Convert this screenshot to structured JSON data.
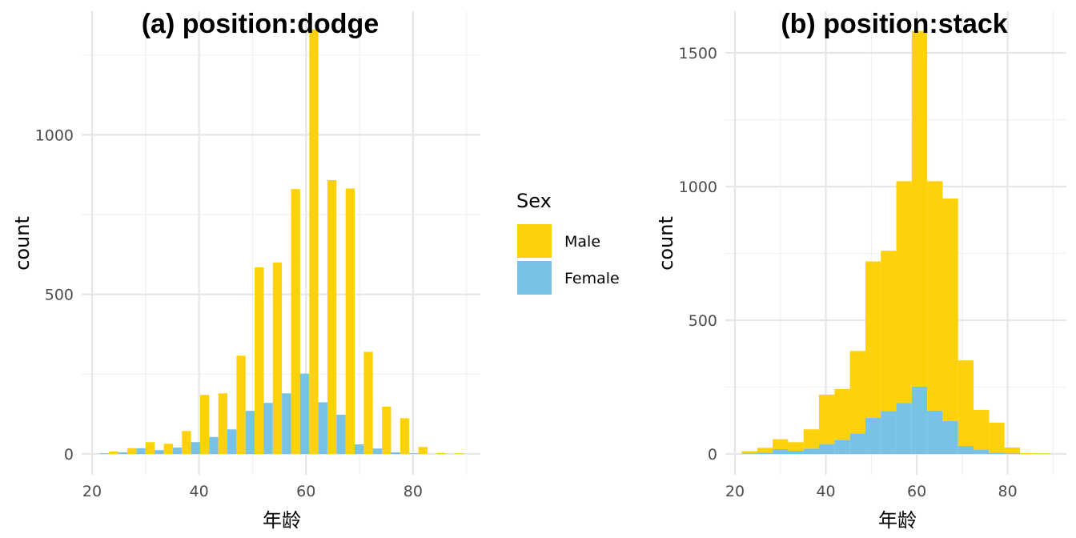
{
  "chart_data": [
    {
      "type": "bar",
      "position": "dodge",
      "title": "(a) position:dodge",
      "xlabel": "年龄",
      "ylabel": "count",
      "xlim": [
        20,
        90
      ],
      "ylim": [
        0,
        1320
      ],
      "xticks": [
        20,
        40,
        60,
        80
      ],
      "yticks": [
        0,
        500,
        1000
      ],
      "grid": true,
      "bin_width": 3.4,
      "bin_centers": [
        23.2,
        26.6,
        30.0,
        33.4,
        36.8,
        40.2,
        43.6,
        47.0,
        50.4,
        53.8,
        57.2,
        60.6,
        64.0,
        67.4,
        70.8,
        74.2,
        77.6,
        81.0,
        84.4,
        87.8
      ],
      "series": [
        {
          "name": "Male",
          "color": "#FDD20A",
          "values": [
            8,
            18,
            37,
            32,
            72,
            185,
            190,
            308,
            585,
            600,
            830,
            1330,
            858,
            832,
            320,
            148,
            112,
            22,
            3,
            2
          ]
        },
        {
          "name": "Female",
          "color": "#78C2E6",
          "values": [
            2,
            5,
            18,
            12,
            20,
            37,
            53,
            77,
            135,
            160,
            190,
            252,
            162,
            123,
            30,
            17,
            5,
            2,
            0,
            0
          ]
        }
      ]
    },
    {
      "type": "bar",
      "position": "stack",
      "title": "(b) position:stack",
      "xlabel": "年龄",
      "ylabel": "count",
      "xlim": [
        20,
        90
      ],
      "ylim": [
        0,
        1570
      ],
      "xticks": [
        20,
        40,
        60,
        80
      ],
      "yticks": [
        0,
        500,
        1000,
        1500
      ],
      "grid": true,
      "bin_width": 3.4,
      "bin_centers": [
        23.2,
        26.6,
        30.0,
        33.4,
        36.8,
        40.2,
        43.6,
        47.0,
        50.4,
        53.8,
        57.2,
        60.6,
        64.0,
        67.4,
        70.8,
        74.2,
        77.6,
        81.0,
        84.4,
        87.8
      ],
      "series": [
        {
          "name": "Male",
          "color": "#FDD20A",
          "values": [
            8,
            18,
            37,
            32,
            72,
            185,
            190,
            308,
            585,
            600,
            830,
            1330,
            858,
            832,
            320,
            148,
            112,
            22,
            3,
            2
          ]
        },
        {
          "name": "Female",
          "color": "#78C2E6",
          "values": [
            2,
            5,
            18,
            12,
            20,
            37,
            53,
            77,
            135,
            160,
            190,
            252,
            162,
            123,
            30,
            17,
            5,
            2,
            0,
            0
          ]
        }
      ]
    }
  ],
  "legend": {
    "title": "Sex",
    "placement": "between-panels",
    "items": [
      {
        "label": "Male",
        "color": "#FDD20A"
      },
      {
        "label": "Female",
        "color": "#78C2E6"
      }
    ]
  }
}
